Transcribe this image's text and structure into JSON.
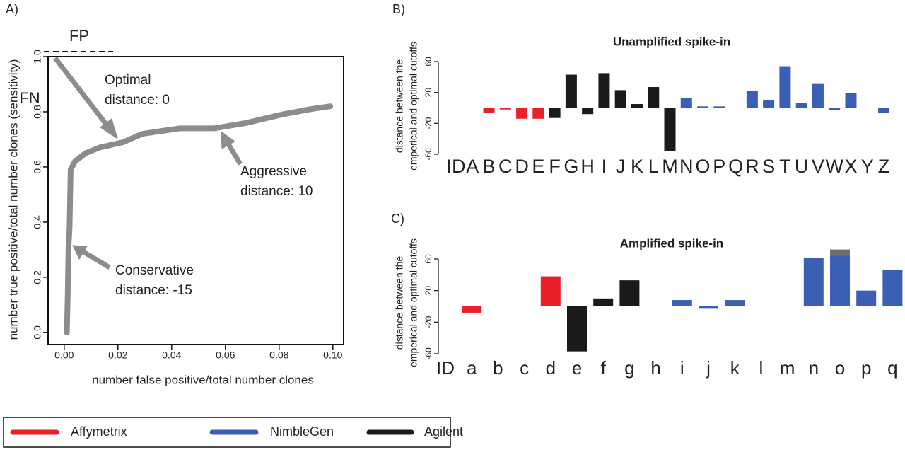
{
  "chart_data": [
    {
      "type": "line",
      "panel_label": "A)",
      "xlabel": "number false positive/total number clones",
      "ylabel": "number true positive/total number clones (sensitivity)",
      "x": [
        0.001,
        0.0013,
        0.0016,
        0.002,
        0.0024,
        0.004,
        0.008,
        0.013,
        0.022,
        0.029,
        0.043,
        0.056,
        0.068,
        0.081,
        0.092,
        0.099
      ],
      "values": [
        0.0,
        0.13,
        0.31,
        0.38,
        0.59,
        0.62,
        0.65,
        0.67,
        0.69,
        0.72,
        0.74,
        0.74,
        0.76,
        0.79,
        0.81,
        0.82
      ],
      "color": "#8c8c8c",
      "xlim": [
        -0.006,
        0.104
      ],
      "ylim": [
        -0.044,
        1.0
      ],
      "xticks": [
        {
          "value": 0,
          "label": "0.00"
        },
        0.02,
        0.04,
        0.06,
        0.08,
        {
          "value": 0.1,
          "label": "0.10"
        }
      ],
      "yticks": [
        {
          "value": 0,
          "label": "0.0"
        },
        0.2,
        0.4,
        0.6,
        0.8,
        {
          "value": 1,
          "label": "1.0"
        }
      ],
      "fp_label": "FP",
      "fn_label": "FN",
      "annotations": [
        [
          "Optimal",
          "distance: 0"
        ],
        [
          "Aggressive",
          "distance: 10"
        ],
        [
          "Conservative",
          "distance: -15"
        ]
      ]
    },
    {
      "type": "bar",
      "panel_label": "B)",
      "title": "Unamplified spike-in",
      "ylabel": [
        "distance between the",
        "emperical and optimal cutoffs"
      ],
      "categories": [
        "ID",
        "A",
        "B",
        "C",
        "D",
        "E",
        "F",
        "G",
        "H",
        "I",
        "J",
        "K",
        "L",
        "M",
        "N",
        "O",
        "P",
        "Q",
        "R",
        "S",
        "T",
        "U",
        "V",
        "W",
        "X",
        "Y",
        "Z"
      ],
      "series": [
        {
          "name": "Affymetrix",
          "color": "#e8202a",
          "values": [
            null,
            null,
            -6,
            -2,
            -14,
            -14,
            null,
            null,
            null,
            null,
            null,
            null,
            null,
            null,
            null,
            null,
            null,
            null,
            null,
            null,
            null,
            null,
            null,
            null,
            null,
            null,
            null
          ]
        },
        {
          "name": "NimbleGen",
          "color": "#3a5fb5",
          "values": [
            null,
            null,
            null,
            null,
            null,
            null,
            null,
            null,
            null,
            null,
            null,
            null,
            null,
            null,
            13,
            2,
            2,
            null,
            22,
            10,
            54,
            6,
            31,
            -3,
            19,
            null,
            -6
          ]
        },
        {
          "name": "Agilent",
          "color": "#1a1a1a",
          "values": [
            null,
            null,
            null,
            null,
            null,
            null,
            -13,
            43,
            -8,
            45,
            23,
            5,
            27,
            -56,
            null,
            null,
            null,
            null,
            null,
            null,
            null,
            null,
            null,
            null,
            null,
            null,
            null
          ]
        }
      ],
      "ylim": [
        -60,
        60
      ],
      "yticks": [
        -60,
        -20,
        20,
        60
      ]
    },
    {
      "type": "bar",
      "panel_label": "C)",
      "title": "Amplified spike-in",
      "ylabel": [
        "distance between the",
        "emperical and optimal cutoffs"
      ],
      "categories": [
        "ID",
        "a",
        "b",
        "c",
        "d",
        "e",
        "f",
        "g",
        "h",
        "i",
        "j",
        "k",
        "l",
        "m",
        "n",
        "o",
        "p",
        "q"
      ],
      "series": [
        {
          "color": "#e8202a",
          "values": [
            null,
            -8,
            null,
            null,
            38,
            null,
            null,
            null,
            null,
            null,
            null,
            null,
            null,
            null,
            null,
            null,
            null,
            null
          ]
        },
        {
          "color": "#3a5fb5",
          "values": [
            null,
            null,
            null,
            null,
            null,
            null,
            null,
            null,
            null,
            8,
            -3,
            8,
            null,
            null,
            61,
            64,
            20,
            46
          ]
        },
        {
          "color": "#1a1a1a",
          "values": [
            null,
            null,
            null,
            null,
            null,
            -57,
            10,
            33,
            null,
            null,
            null,
            null,
            null,
            null,
            null,
            null,
            null,
            null
          ]
        },
        {
          "color": "#6e6e6e",
          "values": [
            null,
            null,
            null,
            null,
            null,
            null,
            null,
            null,
            null,
            null,
            null,
            null,
            null,
            null,
            null,
            8,
            null,
            null
          ]
        }
      ],
      "ylim": [
        -60,
        60
      ],
      "yticks": [
        -60,
        -20,
        20,
        60
      ]
    }
  ]
}
